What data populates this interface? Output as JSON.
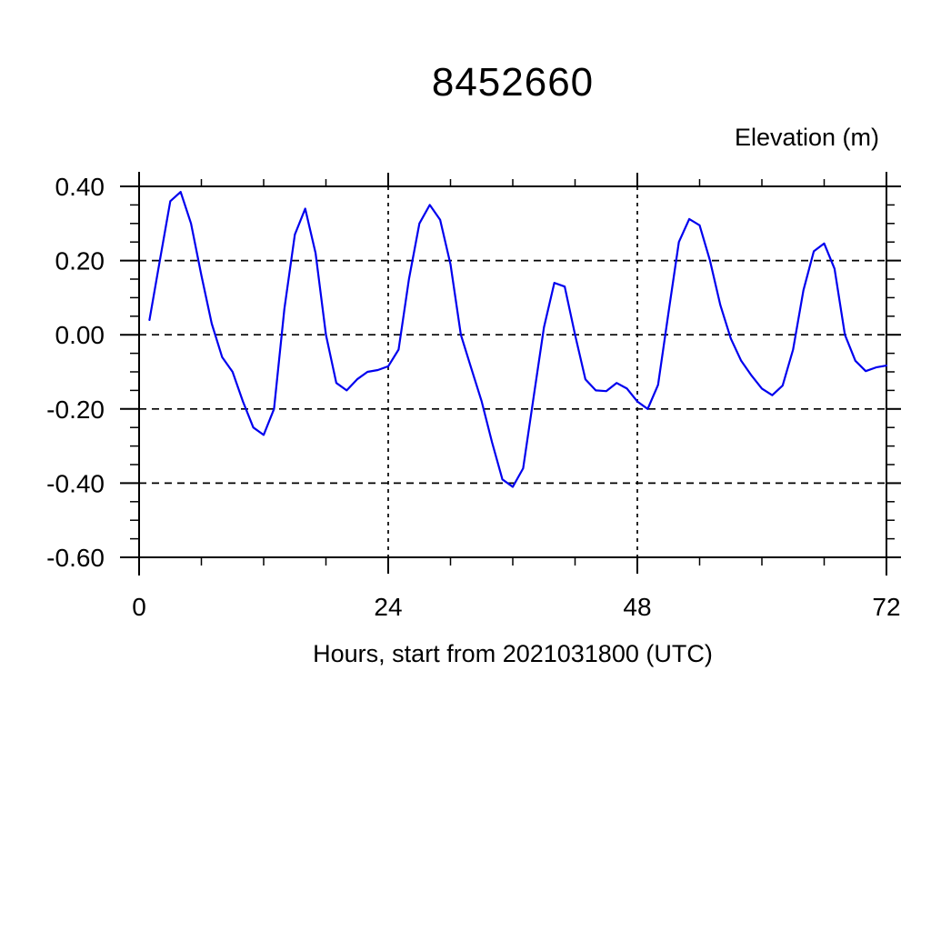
{
  "header": {
    "title": "8452660",
    "right_axis_title": "Elevation (m)",
    "x_axis_title": "Hours, start from 2021031800 (UTC)"
  },
  "chart_data": {
    "type": "line",
    "title": "8452660",
    "ylabel": "Elevation (m)",
    "xlabel": "Hours, start from 2021031800 (UTC)",
    "xlim": [
      0,
      72
    ],
    "ylim": [
      -0.6,
      0.4
    ],
    "x_major_ticks": [
      0,
      24,
      48,
      72
    ],
    "x_tick_labels": [
      "0",
      "24",
      "48",
      "72"
    ],
    "x_minor_tick_step": 6,
    "y_major_ticks": [
      0.4,
      0.2,
      0.0,
      -0.2,
      -0.4,
      -0.6
    ],
    "y_tick_labels": [
      "0.40",
      "0.20",
      "0.00",
      "-0.20",
      "-0.40",
      "-0.60"
    ],
    "y_minor_tick_step": 0.05,
    "grid": {
      "horizontal_at": [
        0.4,
        0.2,
        0.0,
        -0.2,
        -0.4,
        -0.6
      ],
      "vertical_at": [
        24,
        48
      ],
      "style": "dashed",
      "color": "#000000"
    },
    "legend": null,
    "series": [
      {
        "name": "elevation",
        "color": "#0000EE",
        "x": [
          1,
          2,
          3,
          4,
          5,
          6,
          7,
          8,
          9,
          10,
          11,
          12,
          13,
          14,
          15,
          16,
          17,
          18,
          19,
          20,
          21,
          22,
          23,
          24,
          25,
          26,
          27,
          28,
          29,
          30,
          31,
          32,
          33,
          34,
          35,
          36,
          37,
          38,
          39,
          40,
          41,
          42,
          43,
          44,
          45,
          46,
          47,
          48,
          49,
          50,
          51,
          52,
          53,
          54,
          55,
          56,
          57,
          58,
          59,
          60,
          61,
          62,
          63,
          64,
          65,
          66,
          67,
          68,
          69,
          70,
          71,
          72
        ],
        "values": [
          0.04,
          0.2,
          0.36,
          0.385,
          0.3,
          0.16,
          0.03,
          -0.06,
          -0.1,
          -0.18,
          -0.25,
          -0.27,
          -0.2,
          0.07,
          0.27,
          0.34,
          0.22,
          0.0,
          -0.13,
          -0.15,
          -0.12,
          -0.1,
          -0.095,
          -0.085,
          -0.04,
          0.15,
          0.3,
          0.35,
          0.31,
          0.19,
          0.0,
          -0.09,
          -0.18,
          -0.29,
          -0.39,
          -0.41,
          -0.36,
          -0.17,
          0.02,
          0.14,
          0.13,
          0.0,
          -0.12,
          -0.15,
          -0.152,
          -0.13,
          -0.145,
          -0.18,
          -0.2,
          -0.135,
          0.06,
          0.25,
          0.312,
          0.295,
          0.2,
          0.08,
          -0.01,
          -0.07,
          -0.11,
          -0.145,
          -0.163,
          -0.137,
          -0.04,
          0.12,
          0.225,
          0.246,
          0.178,
          0.0,
          -0.07,
          -0.098,
          -0.088,
          -0.083
        ]
      }
    ]
  }
}
